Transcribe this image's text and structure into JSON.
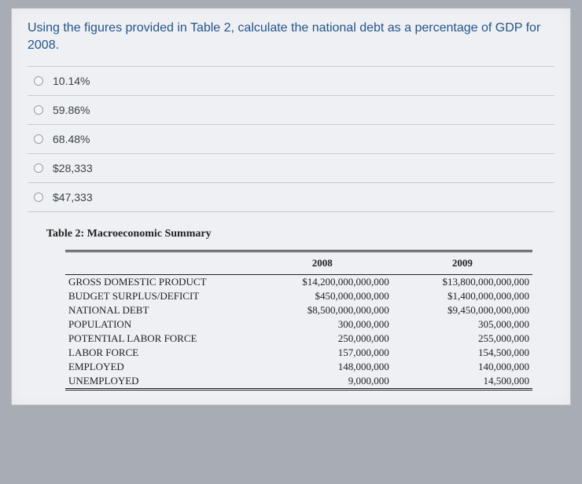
{
  "question": "Using the figures provided in Table 2, calculate the national debt as a percentage of GDP for 2008.",
  "options": [
    "10.14%",
    "59.86%",
    "68.48%",
    "$28,333",
    "$47,333"
  ],
  "table": {
    "caption": "Table 2:  Macroeconomic Summary",
    "columns": [
      "",
      "2008",
      "2009"
    ],
    "rows": [
      [
        "GROSS DOMESTIC PRODUCT",
        "$14,200,000,000,000",
        "$13,800,000,000,000"
      ],
      [
        "BUDGET SURPLUS/DEFICIT",
        "$450,000,000,000",
        "$1,400,000,000,000"
      ],
      [
        "NATIONAL DEBT",
        "$8,500,000,000,000",
        "$9,450,000,000,000"
      ],
      [
        "POPULATION",
        "300,000,000",
        "305,000,000"
      ],
      [
        "POTENTIAL LABOR FORCE",
        "250,000,000",
        "255,000,000"
      ],
      [
        "LABOR FORCE",
        "157,000,000",
        "154,500,000"
      ],
      [
        "EMPLOYED",
        "148,000,000",
        "140,000,000"
      ],
      [
        "UNEMPLOYED",
        "9,000,000",
        "14,500,000"
      ]
    ]
  }
}
